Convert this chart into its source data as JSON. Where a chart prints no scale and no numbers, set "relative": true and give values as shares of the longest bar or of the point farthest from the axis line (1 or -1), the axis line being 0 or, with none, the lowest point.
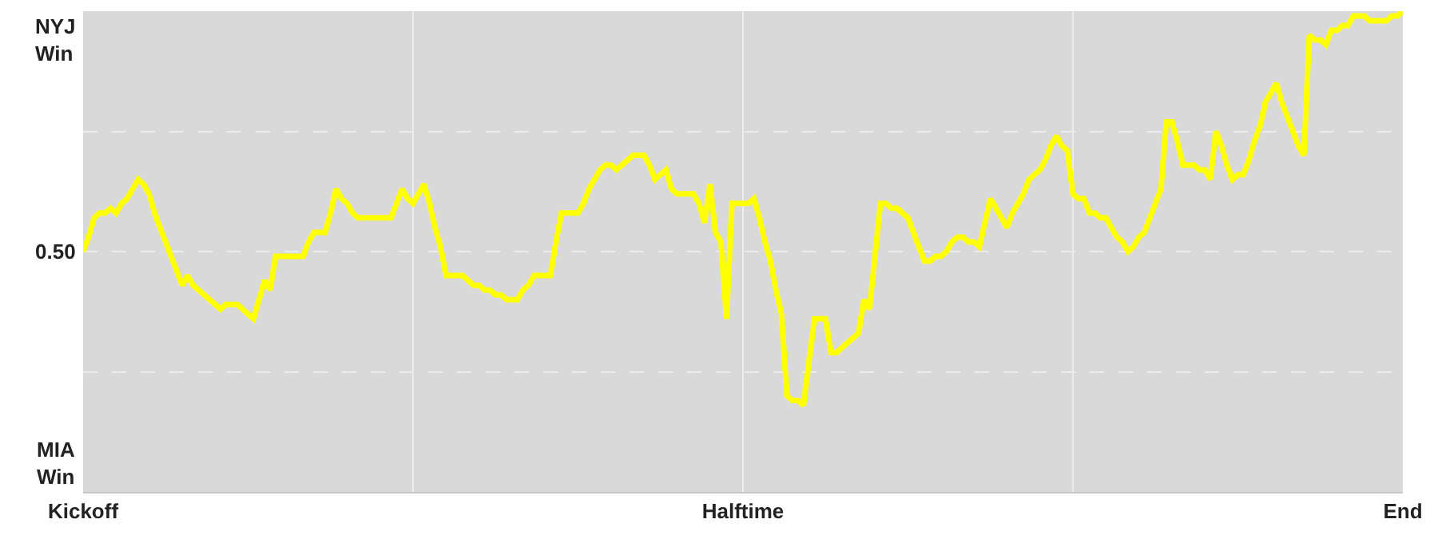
{
  "chart_data": {
    "type": "line",
    "color": "#ffff00",
    "grid": true,
    "marker": "none",
    "line_style": "solid",
    "relative": true,
    "annotations": [
      "NYJ\nWin",
      "0.50",
      "MIA\nWin"
    ],
    "categories": [
      "Kickoff",
      null,
      null,
      null,
      null,
      null,
      null,
      null,
      null,
      null,
      null,
      null,
      null,
      null,
      null,
      null,
      null,
      null,
      null,
      null,
      null,
      null,
      null,
      null,
      null,
      null,
      null,
      null,
      null,
      null,
      null,
      null,
      null,
      null,
      null,
      null,
      null,
      null,
      null,
      null,
      null,
      null,
      null,
      null,
      null,
      null,
      null,
      null,
      null,
      null,
      null,
      null,
      null,
      null,
      null,
      null,
      null,
      null,
      null,
      null,
      null,
      null,
      null,
      null,
      null,
      null,
      null,
      null,
      null,
      null,
      null,
      null,
      null,
      null,
      null,
      null,
      null,
      null,
      null,
      null,
      null,
      null,
      null,
      null,
      null,
      null,
      null,
      null,
      null,
      null,
      null,
      null,
      null,
      null,
      null,
      null,
      null,
      null,
      null,
      null,
      null,
      null,
      null,
      null,
      null,
      null,
      null,
      null,
      null,
      null,
      null,
      null,
      null,
      null,
      null,
      null,
      null,
      null,
      null,
      null,
      "Halftime",
      null,
      null,
      null,
      null,
      null,
      null,
      null,
      null,
      null,
      null,
      null,
      null,
      null,
      null,
      null,
      null,
      null,
      null,
      null,
      null,
      null,
      null,
      null,
      null,
      null,
      null,
      null,
      null,
      null,
      null,
      null,
      null,
      null,
      null,
      null,
      null,
      null,
      null,
      null,
      null,
      null,
      null,
      null,
      null,
      null,
      null,
      null,
      null,
      null,
      null,
      null,
      null,
      null,
      null,
      null,
      null,
      null,
      null,
      null,
      null,
      null,
      null,
      null,
      null,
      null,
      null,
      null,
      null,
      null,
      null,
      null,
      null,
      null,
      null,
      null,
      null,
      null,
      null,
      null,
      null,
      null,
      null,
      null,
      null,
      null,
      null,
      null,
      null,
      null,
      null,
      null,
      null,
      null,
      null,
      null,
      null,
      null,
      null,
      null,
      null,
      null,
      null,
      null,
      null,
      null,
      null,
      null,
      null,
      null,
      null,
      null,
      null,
      null,
      null,
      null,
      null,
      null,
      null,
      null,
      "End"
    ],
    "values": [
      0.5,
      0.53,
      0.57,
      0.58,
      0.58,
      0.59,
      0.58,
      0.6,
      0.61,
      0.63,
      0.65,
      0.64,
      0.62,
      0.58,
      0.55,
      0.52,
      0.49,
      0.46,
      0.43,
      0.45,
      0.43,
      0.42,
      0.41,
      0.4,
      0.39,
      0.38,
      0.39,
      0.39,
      0.39,
      0.38,
      0.37,
      0.36,
      0.4,
      0.44,
      0.42,
      0.49,
      0.49,
      0.49,
      0.49,
      0.49,
      0.49,
      0.52,
      0.54,
      0.54,
      0.54,
      0.58,
      0.63,
      0.61,
      0.6,
      0.58,
      0.57,
      0.57,
      0.57,
      0.57,
      0.57,
      0.57,
      0.57,
      0.6,
      0.63,
      0.61,
      0.6,
      0.62,
      0.64,
      0.6,
      0.55,
      0.51,
      0.45,
      0.45,
      0.45,
      0.45,
      0.44,
      0.43,
      0.43,
      0.42,
      0.42,
      0.41,
      0.41,
      0.4,
      0.4,
      0.4,
      0.42,
      0.43,
      0.45,
      0.45,
      0.45,
      0.45,
      0.52,
      0.58,
      0.58,
      0.58,
      0.58,
      0.6,
      0.63,
      0.65,
      0.67,
      0.68,
      0.68,
      0.67,
      0.68,
      0.69,
      0.7,
      0.7,
      0.7,
      0.68,
      0.65,
      0.66,
      0.67,
      0.63,
      0.62,
      0.62,
      0.62,
      0.62,
      0.6,
      0.56,
      0.64,
      0.54,
      0.52,
      0.36,
      0.6,
      0.6,
      0.6,
      0.6,
      0.61,
      0.57,
      0.52,
      0.48,
      0.42,
      0.37,
      0.2,
      0.19,
      0.19,
      0.18,
      0.27,
      0.36,
      0.36,
      0.36,
      0.29,
      0.29,
      0.3,
      0.31,
      0.32,
      0.33,
      0.4,
      0.38,
      0.49,
      0.6,
      0.6,
      0.59,
      0.59,
      0.58,
      0.57,
      0.54,
      0.51,
      0.48,
      0.48,
      0.49,
      0.49,
      0.5,
      0.52,
      0.53,
      0.53,
      0.52,
      0.52,
      0.51,
      0.56,
      0.61,
      0.59,
      0.57,
      0.55,
      0.58,
      0.6,
      0.62,
      0.65,
      0.66,
      0.67,
      0.69,
      0.72,
      0.74,
      0.72,
      0.71,
      0.62,
      0.61,
      0.61,
      0.58,
      0.58,
      0.57,
      0.57,
      0.55,
      0.53,
      0.52,
      0.5,
      0.51,
      0.53,
      0.54,
      0.57,
      0.6,
      0.63,
      0.77,
      0.77,
      0.73,
      0.68,
      0.68,
      0.68,
      0.67,
      0.67,
      0.65,
      0.75,
      0.72,
      0.68,
      0.65,
      0.66,
      0.66,
      0.69,
      0.73,
      0.76,
      0.81,
      0.83,
      0.85,
      0.81,
      0.78,
      0.75,
      0.72,
      0.7,
      0.95,
      0.94,
      0.94,
      0.93,
      0.96,
      0.96,
      0.97,
      0.97,
      0.99,
      0.99,
      0.99,
      0.98,
      0.98,
      0.98,
      0.98,
      0.99,
      0.99,
      1.0
    ]
  }
}
